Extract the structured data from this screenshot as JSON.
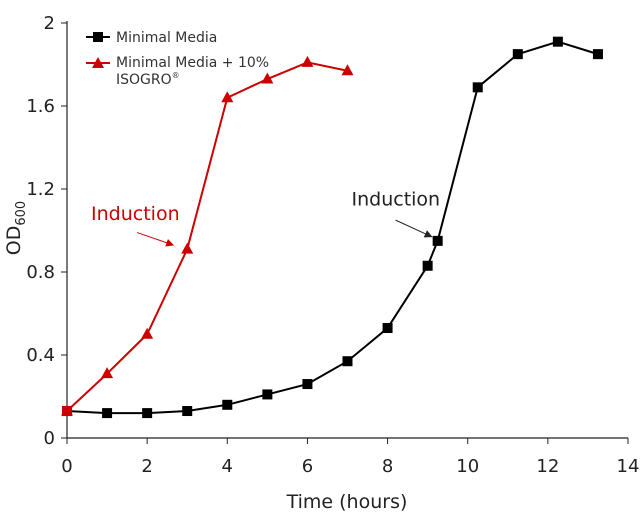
{
  "chart_data": {
    "type": "line",
    "xlabel": "Time (hours)",
    "ylabel": {
      "main": "OD",
      "subscript": "600"
    },
    "xlim": [
      0,
      14
    ],
    "ylim": [
      0,
      2
    ],
    "xticks": [
      0,
      2,
      4,
      6,
      8,
      10,
      12,
      14
    ],
    "yticks": [
      0,
      0.4,
      0.8,
      1.2,
      1.6,
      2
    ],
    "ytick_labels": [
      "0",
      "0.4",
      "0.8",
      "1.2",
      "1.6",
      "2"
    ],
    "grid": false,
    "legend_position": "top-left",
    "series": [
      {
        "name": "Minimal Media",
        "color": "#000000",
        "marker": "square",
        "x": [
          0,
          1,
          2,
          3,
          4,
          5,
          6,
          7,
          8,
          9,
          9.25,
          10.25,
          11.25,
          12.25,
          13.25
        ],
        "y": [
          0.13,
          0.12,
          0.12,
          0.13,
          0.16,
          0.21,
          0.26,
          0.37,
          0.53,
          0.83,
          0.95,
          1.69,
          1.85,
          1.91,
          1.85
        ]
      },
      {
        "name_lines": [
          "Minimal Media + 10%",
          "ISOGRO"
        ],
        "name_superscript": "®",
        "color": "#cc0000",
        "marker": "triangle",
        "x": [
          0,
          1,
          2,
          3,
          4,
          5,
          6,
          7
        ],
        "y": [
          0.13,
          0.31,
          0.5,
          0.91,
          1.64,
          1.73,
          1.81,
          1.77
        ]
      }
    ],
    "annotations": [
      {
        "text": "Induction",
        "color": "#cc0000",
        "text_at": [
          0.6,
          1.05
        ],
        "arrow_from": [
          1.75,
          0.99
        ],
        "arrow_to": [
          2.65,
          0.93
        ]
      },
      {
        "text": "Induction",
        "color": "#222222",
        "text_at": [
          7.1,
          1.12
        ],
        "arrow_from": [
          8.2,
          1.05
        ],
        "arrow_to": [
          9.1,
          0.97
        ]
      }
    ]
  }
}
